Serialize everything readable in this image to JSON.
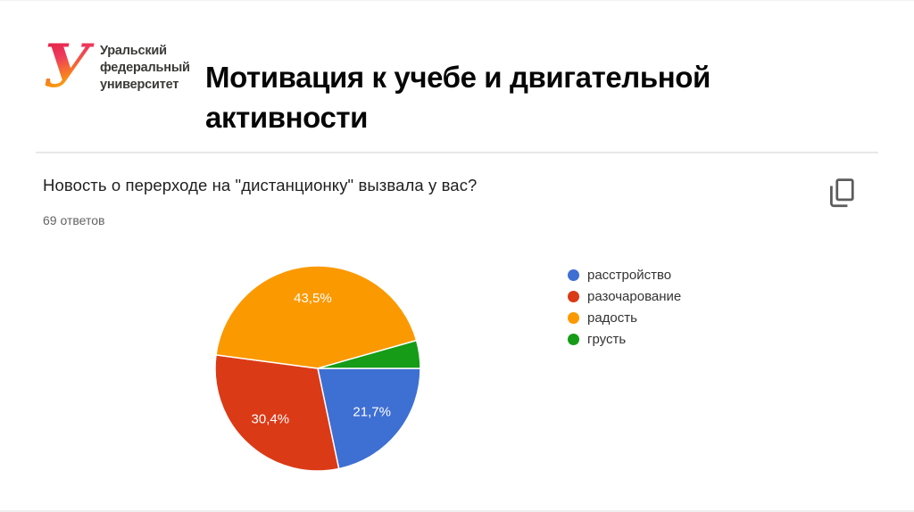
{
  "slide": {
    "title": "Мотивация к учебе и двигательной активности"
  },
  "logo": {
    "mark_letter": "У",
    "line1": "Уральский",
    "line2": "федеральный",
    "line3": "университет",
    "gradient_top": "#dc1239",
    "gradient_mid": "#ee3a5d",
    "gradient_warm": "#f98c16",
    "gradient_bottom": "#ffc400"
  },
  "form_card": {
    "question": "Новость о перерходе на \"дистанционку\" вызвала у вас?",
    "responses_count": "69 ответов"
  },
  "chart_data": {
    "type": "pie",
    "title": "Новость о перерходе на \"дистанционку\" вызвала у вас?",
    "total_responses": 69,
    "legend_position": "right",
    "start_angle_deg": 90,
    "direction": "clockwise",
    "label_color": "#ffffff",
    "slices": [
      {
        "label": "расстройство",
        "value": 21.7,
        "display": "21,7%",
        "color": "#3e6fd3",
        "show_label": true
      },
      {
        "label": "разочарование",
        "value": 30.4,
        "display": "30,4%",
        "color": "#db3a17",
        "show_label": true
      },
      {
        "label": "радость",
        "value": 43.5,
        "display": "43,5%",
        "color": "#fb9900",
        "show_label": true
      },
      {
        "label": "грусть",
        "value": 4.4,
        "display": "",
        "color": "#169c16",
        "show_label": false
      }
    ]
  }
}
